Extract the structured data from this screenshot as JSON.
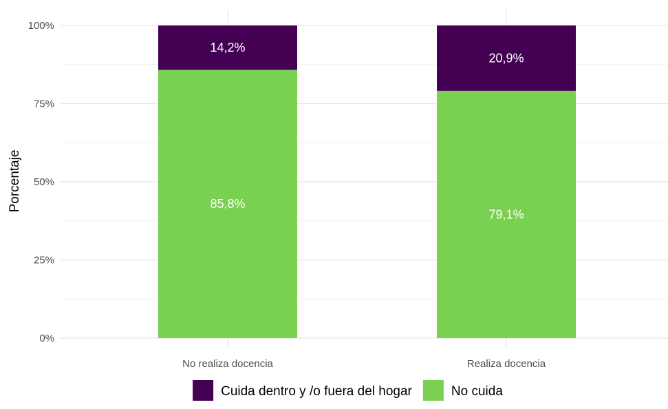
{
  "chart_data": {
    "type": "bar",
    "stacked": true,
    "percent_scale": true,
    "title": "",
    "xlabel": "",
    "ylabel": "Porcentaje",
    "ylim": [
      0,
      100
    ],
    "yticks": [
      {
        "value": 0,
        "label": "0%"
      },
      {
        "value": 25,
        "label": "25%"
      },
      {
        "value": 50,
        "label": "50%"
      },
      {
        "value": 75,
        "label": "75%"
      },
      {
        "value": 100,
        "label": "100%"
      }
    ],
    "categories": [
      "No realiza docencia",
      "Realiza docencia"
    ],
    "series": [
      {
        "name": "No cuida",
        "color": "#7AD151",
        "values": [
          85.8,
          79.1
        ],
        "labels": [
          "85,8%",
          "79,1%"
        ]
      },
      {
        "name": "Cuida dentro y /o fuera del hogar",
        "color": "#440154",
        "values": [
          14.2,
          20.9
        ],
        "labels": [
          "14,2%",
          "20,9%"
        ]
      }
    ],
    "legend": {
      "position": "bottom",
      "entries": [
        {
          "label": "Cuida dentro y /o fuera del hogar",
          "color": "#440154"
        },
        {
          "label": "No cuida",
          "color": "#7AD151"
        }
      ]
    },
    "grid": true
  }
}
